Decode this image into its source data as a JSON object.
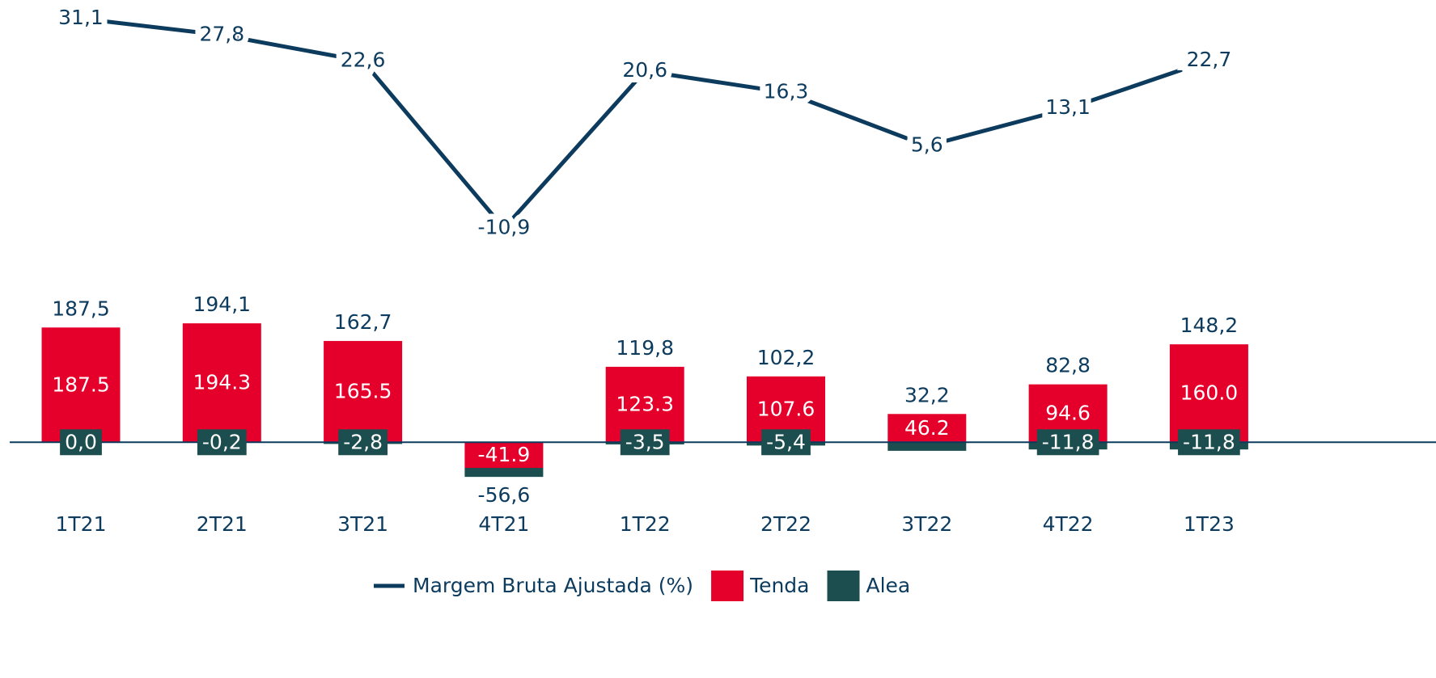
{
  "chart_data": {
    "type": "bar",
    "categories": [
      "1T21",
      "2T21",
      "3T21",
      "4T21",
      "1T22",
      "2T22",
      "3T22",
      "4T22",
      "1T23"
    ],
    "series": [
      {
        "name": "Margem Bruta Ajustada (%)",
        "type": "line",
        "axis": "y2",
        "color": "#0d3b5e",
        "values": [
          31.1,
          27.8,
          22.6,
          -10.9,
          20.6,
          16.3,
          5.6,
          13.1,
          22.7
        ],
        "value_labels": [
          "31,1",
          "27,8",
          "22,6",
          "-10,9",
          "20,6",
          "16,3",
          "5,6",
          "13,1",
          "22,7"
        ]
      },
      {
        "name": "Tenda",
        "color": "#e4002b",
        "values": [
          187.5,
          194.3,
          165.5,
          -41.9,
          123.3,
          107.6,
          46.2,
          94.6,
          160.0
        ],
        "value_labels": [
          "187.5",
          "194.3",
          "165.5",
          "-41.9",
          "123.3",
          "107.6",
          "46.2",
          "94.6",
          "160.0"
        ]
      },
      {
        "name": "Alea",
        "color": "#1d4e4f",
        "values": [
          0.0,
          -0.2,
          -2.8,
          -14.7,
          -3.5,
          -5.4,
          -14.0,
          -11.8,
          -11.8
        ],
        "value_labels": [
          "0,0",
          "-0,2",
          "-2,8",
          null,
          "-3,5",
          "-5,4",
          null,
          "-11,8",
          "-11,8"
        ]
      }
    ],
    "totals": {
      "values": [
        187.5,
        194.1,
        162.7,
        -56.6,
        119.8,
        102.2,
        32.2,
        82.8,
        148.2
      ],
      "value_labels": [
        "187,5",
        "194,1",
        "162,7",
        "-56,6",
        "119,8",
        "102,2",
        "32,2",
        "82,8",
        "148,2"
      ]
    },
    "ylim": [
      -100,
      720
    ],
    "y2lim": [
      -66,
      34.5
    ]
  }
}
